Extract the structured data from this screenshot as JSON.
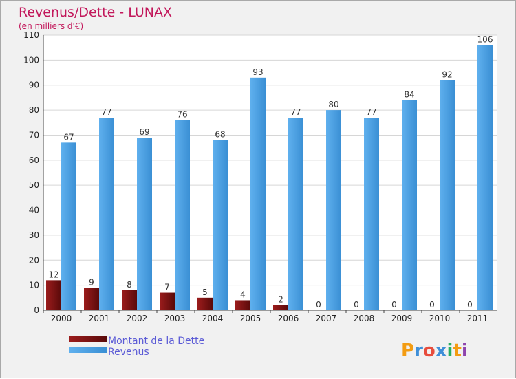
{
  "title": "Revenus/Dette - LUNAX",
  "subtitle": "(en milliers d'€)",
  "brand": {
    "letters": [
      "P",
      "r",
      "o",
      "x",
      "i",
      "t",
      "i"
    ],
    "colors": [
      "#f39c12",
      "#3f8fd8",
      "#e74c3c",
      "#3f8fd8",
      "#27ae60",
      "#f39c12",
      "#8e44ad"
    ]
  },
  "chart_data": {
    "type": "bar",
    "categories": [
      "2000",
      "2001",
      "2002",
      "2003",
      "2004",
      "2005",
      "2006",
      "2007",
      "2008",
      "2009",
      "2010",
      "2011"
    ],
    "series": [
      {
        "name": "Montant de la Dette",
        "color": "#7a1010",
        "values": [
          12,
          9,
          8,
          7,
          5,
          4,
          2,
          0,
          0,
          0,
          0,
          0
        ]
      },
      {
        "name": "Revenus",
        "color": "#4a9fe0",
        "values": [
          67,
          77,
          69,
          76,
          68,
          93,
          77,
          80,
          77,
          84,
          92,
          106
        ]
      }
    ],
    "ylim": [
      0,
      110
    ],
    "yticks": [
      "0",
      "10",
      "20",
      "30",
      "40",
      "50",
      "60",
      "70",
      "80",
      "90",
      "100",
      "110"
    ],
    "grid": true,
    "legend": "bottom-left"
  }
}
